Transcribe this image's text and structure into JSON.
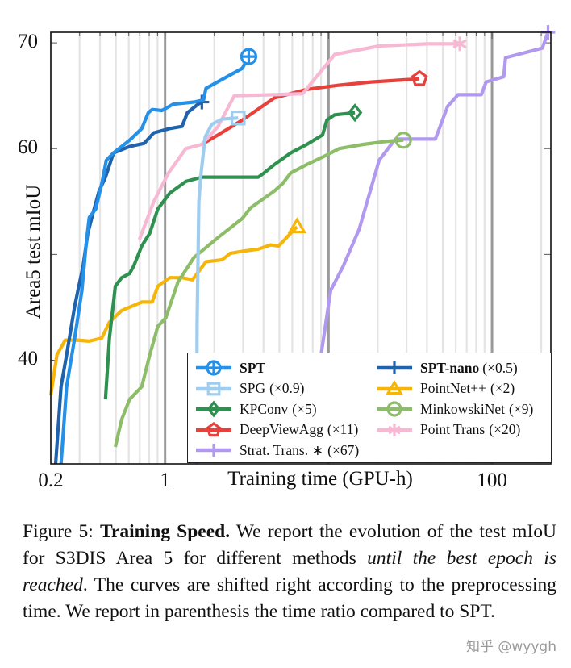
{
  "chart_data": {
    "type": "line",
    "xlabel": "Training time (GPU-h)",
    "ylabel": "Area5 test mIoU",
    "xscale": "log",
    "xlim": [
      0.2,
      229
    ],
    "ylim": [
      30.2,
      71
    ],
    "xticks": [
      {
        "value": 0.2,
        "label": "0.2"
      },
      {
        "value": 1,
        "label": "1"
      },
      {
        "value": 100,
        "label": "100"
      }
    ],
    "yticks": [
      {
        "value": 70,
        "label": "70"
      },
      {
        "value": 60,
        "label": "60"
      },
      {
        "value": 40,
        "label": "40"
      }
    ],
    "ytick_marks": [
      40,
      50,
      60,
      70
    ],
    "grid": "vertical log grid",
    "legend_position": "bottom-right",
    "series": [
      {
        "name": "SPT",
        "ratio": "",
        "bold": true,
        "color": "#2490e8",
        "marker": "circle-plus",
        "x": [
          0.231,
          0.25,
          0.28,
          0.31,
          0.33,
          0.344,
          0.377,
          0.413,
          0.437,
          0.484,
          0.607,
          0.72,
          0.79,
          0.834,
          0.956,
          1.12,
          1.5,
          1.72,
          1.78,
          2.97,
          3.25
        ],
        "y": [
          30.2,
          37.5,
          42.1,
          46.6,
          51.2,
          53.5,
          54.3,
          56.9,
          58.9,
          59.6,
          60.8,
          61.9,
          63.4,
          63.7,
          63.6,
          64.2,
          64.4,
          64.6,
          65.7,
          67.6,
          68.7
        ]
      },
      {
        "name": "SPT-nano",
        "ratio": "(×0.5)",
        "bold": true,
        "color": "#1f63ad",
        "marker": "plus",
        "x": [
          0.214,
          0.231,
          0.25,
          0.28,
          0.315,
          0.337,
          0.365,
          0.395,
          0.432,
          0.484,
          0.607,
          0.745,
          0.853,
          1.07,
          1.27,
          1.37,
          1.59,
          1.68
        ],
        "y": [
          30.2,
          37.5,
          40.5,
          45.1,
          48.9,
          52,
          54.1,
          56,
          57.3,
          59.6,
          60.2,
          60.5,
          61.5,
          61.9,
          62.1,
          63.4,
          64.2,
          64.4
        ]
      },
      {
        "name": "SPG",
        "ratio": "(×0.9)",
        "bold": false,
        "color": "#9fcdf0",
        "marker": "square",
        "x": [
          1.56,
          1.57,
          1.61,
          1.65,
          1.76,
          1.93,
          2.24,
          2.8
        ],
        "y": [
          30.2,
          43.6,
          55,
          57.3,
          61.1,
          62.3,
          62.8,
          62.9
        ]
      },
      {
        "name": "PointNet++",
        "ratio": "(×2)",
        "bold": false,
        "color": "#f5b50a",
        "marker": "triangle",
        "x": [
          0.2,
          0.218,
          0.245,
          0.29,
          0.344,
          0.41,
          0.457,
          0.543,
          0.72,
          0.834,
          0.903,
          1.07,
          1.27,
          1.47,
          1.78,
          2.24,
          2.5,
          2.97,
          3.72,
          4.42,
          4.95,
          5.54,
          6.2,
          6.42
        ],
        "y": [
          36.7,
          40.5,
          41.9,
          41.9,
          41.8,
          42.1,
          43.6,
          44.7,
          45.5,
          45.5,
          47,
          47.8,
          47.8,
          47.6,
          49.3,
          49.5,
          50.1,
          50.3,
          50.5,
          50.9,
          50.8,
          51.6,
          52.4,
          52.6
        ]
      },
      {
        "name": "KPConv",
        "ratio": "(×5)",
        "bold": false,
        "color": "#2f9150",
        "marker": "diamond",
        "x": [
          0.432,
          0.457,
          0.496,
          0.543,
          0.607,
          0.643,
          0.72,
          0.762,
          0.806,
          0.903,
          1.07,
          1.34,
          1.68,
          3.72,
          4.03,
          4.67,
          5.87,
          7.37,
          9.2,
          9.77,
          10.9,
          14.5
        ],
        "y": [
          36.3,
          42.1,
          47,
          47.8,
          48.2,
          48.9,
          50.8,
          51.4,
          52,
          54.3,
          55.8,
          56.9,
          57.3,
          57.3,
          57.7,
          58.5,
          59.6,
          60.4,
          61.3,
          62.7,
          63.2,
          63.4
        ]
      },
      {
        "name": "MinkowskiNet",
        "ratio": "(×9)",
        "bold": false,
        "color": "#8dbd68",
        "marker": "circle",
        "x": [
          0.496,
          0.543,
          0.607,
          0.72,
          0.806,
          0.903,
          1.01,
          1.2,
          1.5,
          2.11,
          2.97,
          3.33,
          4.67,
          5.24,
          5.87,
          7.37,
          9.2,
          11.6,
          16.3,
          22.9,
          28.7
        ],
        "y": [
          31.8,
          34.4,
          36.3,
          37.5,
          40.5,
          43.2,
          44,
          47.4,
          49.7,
          51.6,
          53.4,
          54.4,
          56,
          56.7,
          57.7,
          58.5,
          59.2,
          60,
          60.4,
          60.7,
          60.8
        ]
      },
      {
        "name": "DeepViewAgg",
        "ratio": "(×11)",
        "bold": false,
        "color": "#e8413c",
        "marker": "pentagon",
        "x": [
          1.72,
          2.11,
          2.97,
          4.67,
          7.37,
          11.6,
          18.2,
          28.7,
          36
        ],
        "y": [
          60.5,
          61.3,
          62.7,
          64.8,
          65.6,
          66,
          66.3,
          66.5,
          66.6
        ]
      },
      {
        "name": "Point Trans",
        "ratio": "(×20)",
        "bold": false,
        "color": "#f7b8d4",
        "marker": "asterisk",
        "x": [
          0.696,
          0.853,
          1.05,
          1.34,
          1.68,
          2.11,
          2.65,
          4.67,
          6.95,
          10.9,
          20.4,
          40.2,
          63.5
        ],
        "y": [
          51.4,
          55,
          57.7,
          60,
          60.4,
          62.1,
          65,
          65.1,
          65.2,
          68.9,
          69.7,
          69.9,
          69.9
        ]
      },
      {
        "name": "Strat. Trans. ∗",
        "ratio": "(×67)",
        "bold": false,
        "color": "#b199f0",
        "marker": "plus",
        "x": [
          9.0,
          10.3,
          12.3,
          15.4,
          20.4,
          25.6,
          45,
          53.5,
          62,
          86,
          92,
          118,
          121,
          203,
          220
        ],
        "y": [
          40.5,
          46.6,
          48.9,
          52.4,
          58.9,
          60.9,
          60.9,
          64,
          65.1,
          65.1,
          66.3,
          66.8,
          68.6,
          69.5,
          71
        ]
      }
    ]
  },
  "caption": {
    "figure_label": "Figure 5:",
    "bold_title": "Training Speed.",
    "text_1": "We report the evolution of the test mIoU for S3DIS Area 5 for different methods",
    "italic": "until the best epoch is reached",
    "text_2": ". The curves are shifted right according to the preprocessing time. We report in parenthesis the time ratio compared to SPT."
  },
  "watermark": "知乎 @wyygh"
}
